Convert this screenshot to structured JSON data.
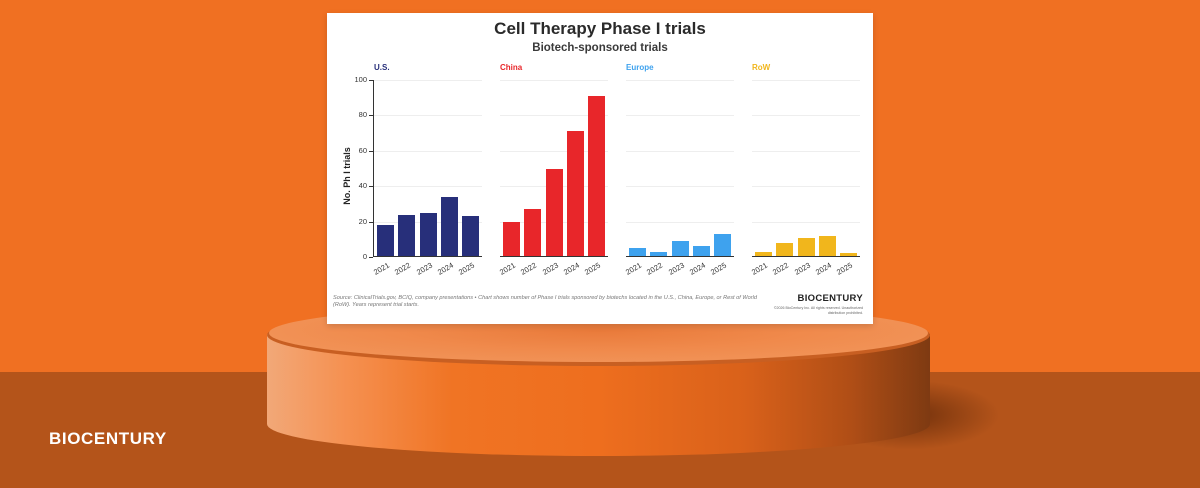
{
  "brand": {
    "logo_text": "BIOCENTURY"
  },
  "card": {
    "title": "Cell Therapy Phase I trials",
    "subtitle": "Biotech-sponsored trials",
    "ylabel": "No. Ph I trials",
    "source": "Source: ClinicalTrials.gov, BCIQ, company presentations • Chart shows number of Phase I trials sponsored by biotechs located in the U.S., China, Europe, or Rest of World (RoW). Years represent trial starts.",
    "logo": "BIOCENTURY",
    "copyright": "©2026 BioCentury Inc. All rights reserved. Unauthorized distribution prohibited."
  },
  "colors": {
    "us": "#272f7a",
    "china": "#e8262a",
    "europe": "#3ea2ee",
    "row": "#f1b61c",
    "background": "#f07022",
    "floor": "#b4541a"
  },
  "chart_data": {
    "type": "bar",
    "title": "Cell Therapy Phase I trials",
    "subtitle": "Biotech-sponsored trials",
    "xlabel": "",
    "ylabel": "No. Ph I trials",
    "ylim": [
      0,
      100
    ],
    "yticks": [
      0,
      20,
      40,
      60,
      80,
      100
    ],
    "grid": true,
    "categories": [
      "2021",
      "2022",
      "2023",
      "2024",
      "2025"
    ],
    "series": [
      {
        "name": "U.S.",
        "color": "#272f7a",
        "values": [
          18,
          24,
          25,
          34,
          23
        ]
      },
      {
        "name": "China",
        "color": "#e8262a",
        "values": [
          20,
          27,
          50,
          71,
          91
        ]
      },
      {
        "name": "Europe",
        "color": "#3ea2ee",
        "values": [
          5,
          3,
          9,
          6,
          13
        ]
      },
      {
        "name": "RoW",
        "color": "#f1b61c",
        "values": [
          3,
          8,
          11,
          12,
          2
        ]
      }
    ],
    "layout": "small multiples (4 panels side by side, shared y-axis)"
  }
}
